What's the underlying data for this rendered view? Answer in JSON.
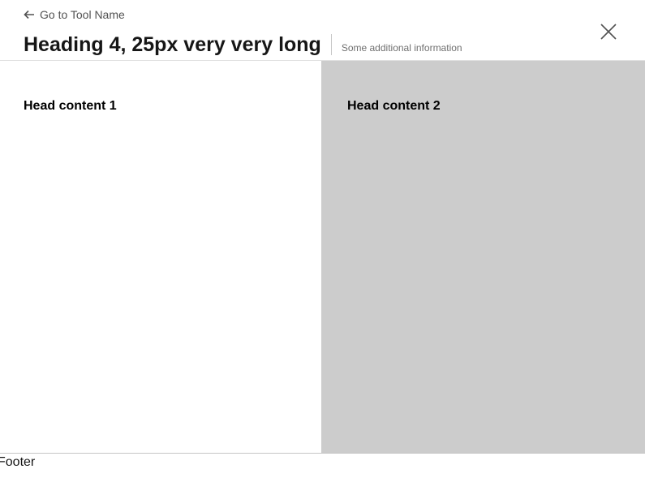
{
  "header": {
    "back_link_label": "Go to Tool Name",
    "back_icon": "arrow-left-icon",
    "title": "Heading 4, 25px very very long",
    "additional_info": "Some additional information",
    "close_icon": "close-icon"
  },
  "content": {
    "left": {
      "heading": "Head content 1",
      "background": "#ffffff"
    },
    "right": {
      "heading": "Head content 2",
      "background": "#cccccc"
    }
  },
  "footer": {
    "text": "Footer"
  }
}
